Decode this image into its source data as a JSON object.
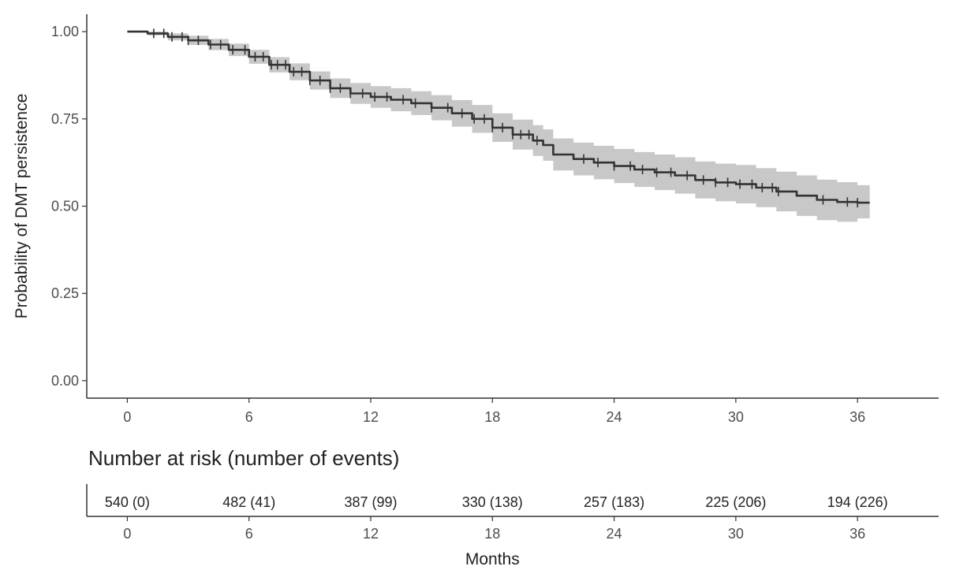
{
  "chart_data": {
    "type": "line",
    "subtype": "kaplan-meier",
    "title": "",
    "xlabel": "",
    "ylabel": "Probability of DMT persistence",
    "xlim": [
      -2,
      40
    ],
    "ylim": [
      -0.05,
      1.05
    ],
    "x_ticks": [
      0,
      6,
      12,
      18,
      24,
      30,
      36
    ],
    "y_ticks": [
      0.0,
      0.25,
      0.5,
      0.75,
      1.0
    ],
    "y_tick_labels": [
      "0.00",
      "0.25",
      "0.50",
      "0.75",
      "1.00"
    ],
    "grid": false,
    "legend": "none",
    "colors": {
      "line": "#333333",
      "ci_band": "#c8c8c8",
      "axis": "#333333"
    },
    "series": [
      {
        "x": [
          0,
          1,
          2,
          3,
          4,
          5,
          6,
          7,
          8,
          9,
          10,
          11,
          12,
          13,
          14,
          15,
          16,
          17,
          18,
          19,
          20,
          20.5,
          21,
          22,
          23,
          24,
          25,
          26,
          27,
          28,
          29,
          30,
          31,
          32,
          33,
          34,
          35,
          36,
          36.6
        ],
        "y": [
          1.0,
          0.995,
          0.985,
          0.975,
          0.963,
          0.948,
          0.928,
          0.905,
          0.885,
          0.86,
          0.838,
          0.823,
          0.813,
          0.805,
          0.795,
          0.782,
          0.766,
          0.75,
          0.725,
          0.705,
          0.688,
          0.675,
          0.648,
          0.635,
          0.625,
          0.615,
          0.605,
          0.597,
          0.588,
          0.575,
          0.568,
          0.563,
          0.553,
          0.542,
          0.53,
          0.518,
          0.512,
          0.51,
          0.51
        ],
        "ci_lower": [
          1.0,
          0.989,
          0.975,
          0.962,
          0.947,
          0.93,
          0.908,
          0.883,
          0.861,
          0.834,
          0.81,
          0.793,
          0.782,
          0.772,
          0.761,
          0.746,
          0.728,
          0.71,
          0.684,
          0.662,
          0.644,
          0.63,
          0.602,
          0.588,
          0.577,
          0.566,
          0.555,
          0.546,
          0.536,
          0.522,
          0.514,
          0.508,
          0.497,
          0.485,
          0.472,
          0.46,
          0.455,
          0.465,
          0.465
        ],
        "ci_upper": [
          1.0,
          1.0,
          0.995,
          0.988,
          0.979,
          0.966,
          0.948,
          0.927,
          0.909,
          0.886,
          0.866,
          0.853,
          0.844,
          0.838,
          0.829,
          0.818,
          0.804,
          0.79,
          0.766,
          0.748,
          0.732,
          0.72,
          0.694,
          0.682,
          0.673,
          0.664,
          0.655,
          0.648,
          0.64,
          0.628,
          0.622,
          0.618,
          0.609,
          0.599,
          0.588,
          0.576,
          0.569,
          0.56,
          0.56
        ],
        "censor_x": [
          1.3,
          1.8,
          2.2,
          2.7,
          3.0,
          3.5,
          4.1,
          4.6,
          5.2,
          5.8,
          6.3,
          6.7,
          7.1,
          7.4,
          7.8,
          8.2,
          8.6,
          9.0,
          9.5,
          10.0,
          10.5,
          11.0,
          11.6,
          12.2,
          12.8,
          13.6,
          14.2,
          15.0,
          15.8,
          16.5,
          17.1,
          17.6,
          18.0,
          18.5,
          19.0,
          19.4,
          19.8,
          20.2,
          22.5,
          23.2,
          24.0,
          24.8,
          25.4,
          26.1,
          26.8,
          27.6,
          28.4,
          29.0,
          29.6,
          30.2,
          30.8,
          31.3,
          31.8,
          32.1,
          34.3,
          35.5,
          36.0
        ]
      }
    ],
    "risk_table": {
      "title": "Number at risk (number of events)",
      "xlabel": "Months",
      "times": [
        0,
        6,
        12,
        18,
        24,
        30,
        36
      ],
      "labels": [
        "540 (0)",
        "482 (41)",
        "387 (99)",
        "330 (138)",
        "257 (183)",
        "225 (206)",
        "194 (226)"
      ]
    }
  }
}
